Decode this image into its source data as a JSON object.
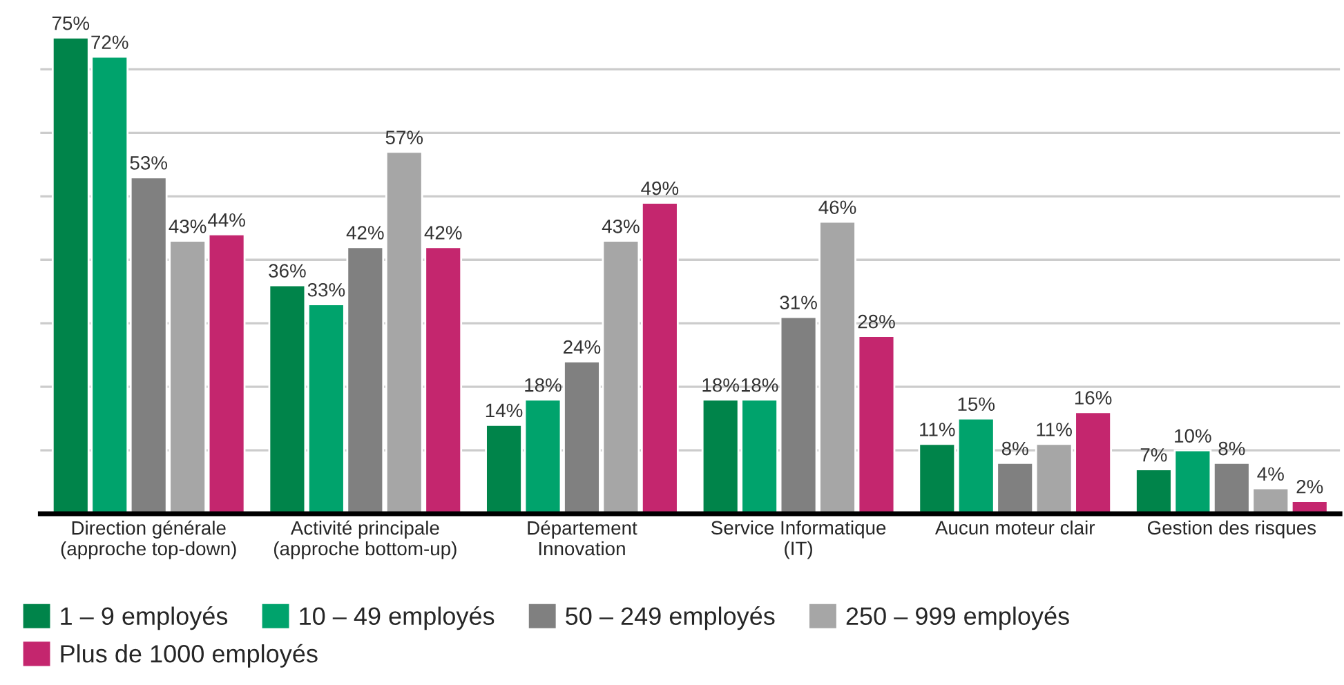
{
  "chart_data": {
    "type": "bar",
    "categories": [
      "Direction générale\n(approche top-down)",
      "Activité principale\n(approche bottom-up)",
      "Département\nInnovation",
      "Service Informatique\n(IT)",
      "Aucun moteur clair",
      "Gestion des risques"
    ],
    "series": [
      {
        "name": "1 – 9 employés",
        "color": "#00844a",
        "values": [
          75,
          36,
          14,
          18,
          11,
          7
        ],
        "value_labels": [
          "75%",
          "36%",
          "14%",
          "18%",
          "11%",
          "7%"
        ]
      },
      {
        "name": "10 – 49 employés",
        "color": "#00a36c",
        "values": [
          72,
          33,
          18,
          18,
          15,
          10
        ],
        "value_labels": [
          "72%",
          "33%",
          "18%",
          "18%",
          "15%",
          "10%"
        ]
      },
      {
        "name": "50 – 249 employés",
        "color": "#808080",
        "values": [
          53,
          42,
          24,
          31,
          8,
          8
        ],
        "value_labels": [
          "53%",
          "42%",
          "24%",
          "31%",
          "8%",
          "8%"
        ]
      },
      {
        "name": "250 – 999 employés",
        "color": "#a6a6a6",
        "values": [
          43,
          57,
          43,
          46,
          11,
          4
        ],
        "value_labels": [
          "43%",
          "57%",
          "43%",
          "46%",
          "11%",
          "4%"
        ]
      },
      {
        "name": "Plus de 1000 employés",
        "color": "#c4266e",
        "values": [
          44,
          42,
          49,
          28,
          16,
          2
        ],
        "value_labels": [
          "44%",
          "42%",
          "49%",
          "28%",
          "16%",
          "2%"
        ]
      }
    ],
    "grid": "y",
    "legend": "bottom",
    "tick_labels": "x"
  }
}
